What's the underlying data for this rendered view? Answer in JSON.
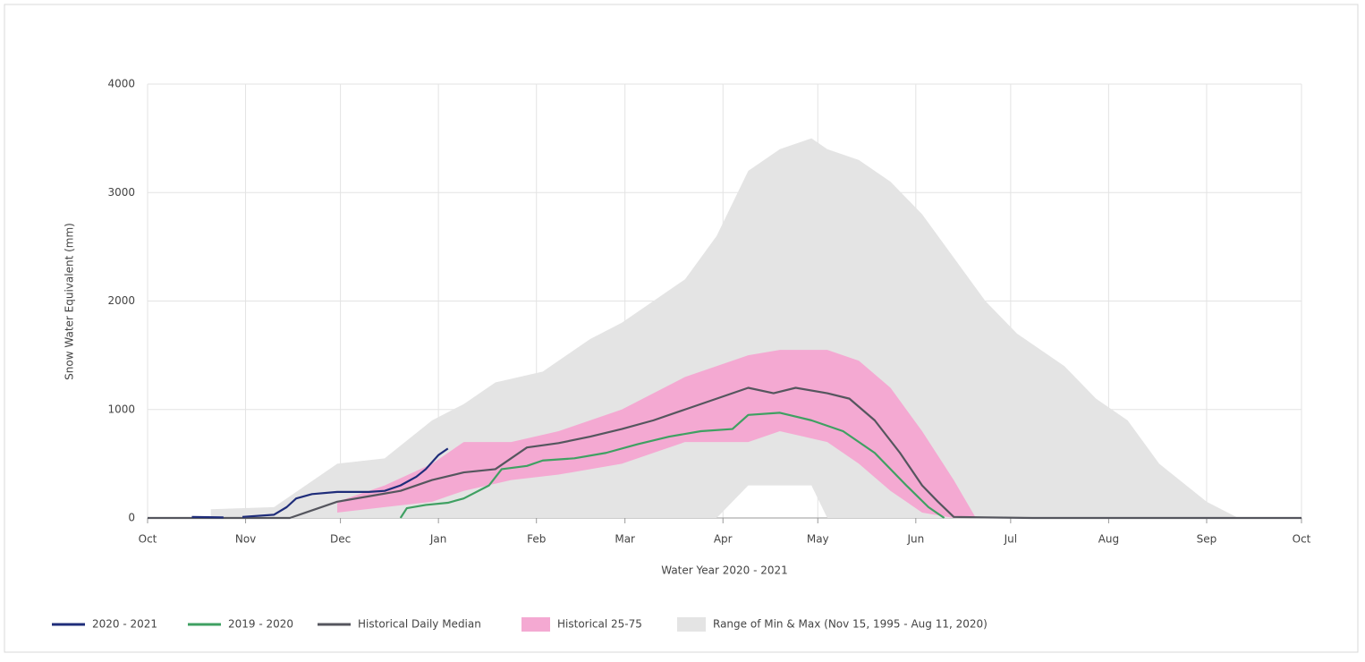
{
  "chart_data": {
    "type": "line",
    "x_label": "Water Year 2020 - 2021",
    "y_label": "Snow Water Equivalent (mm)",
    "xlim": [
      0,
      365
    ],
    "ylim": [
      0,
      4000
    ],
    "grid": true,
    "legend": "bottom",
    "xticks": [
      {
        "value": 0,
        "label": "Oct"
      },
      {
        "value": 31,
        "label": "Nov"
      },
      {
        "value": 61,
        "label": "Dec"
      },
      {
        "value": 92,
        "label": "Jan"
      },
      {
        "value": 123,
        "label": "Feb"
      },
      {
        "value": 151,
        "label": "Mar"
      },
      {
        "value": 182,
        "label": "Apr"
      },
      {
        "value": 212,
        "label": "May"
      },
      {
        "value": 243,
        "label": "Jun"
      },
      {
        "value": 273,
        "label": "Jul"
      },
      {
        "value": 304,
        "label": "Aug"
      },
      {
        "value": 335,
        "label": "Sep"
      },
      {
        "value": 365,
        "label": "Oct"
      }
    ],
    "yticks": [
      0,
      1000,
      2000,
      3000,
      4000
    ],
    "series": [
      {
        "name": "2020 - 2021",
        "type": "line",
        "color": "#1f2d7a",
        "x": [
          14,
          24,
          27,
          30,
          40,
          44,
          47,
          52,
          60,
          70,
          75,
          80,
          85,
          88,
          92,
          95
        ],
        "values": [
          10,
          5,
          null,
          10,
          30,
          100,
          180,
          220,
          240,
          240,
          250,
          300,
          380,
          450,
          580,
          640
        ]
      },
      {
        "name": "2019 - 2020",
        "type": "line",
        "color": "#3fa062",
        "x": [
          80,
          82,
          88,
          95,
          100,
          108,
          112,
          120,
          125,
          135,
          145,
          155,
          165,
          175,
          185,
          190,
          200,
          210,
          220,
          230,
          240,
          247,
          252
        ],
        "values": [
          0,
          90,
          120,
          140,
          180,
          300,
          450,
          480,
          530,
          550,
          600,
          680,
          750,
          800,
          820,
          950,
          970,
          900,
          800,
          600,
          300,
          100,
          0
        ]
      },
      {
        "name": "Historical Daily Median",
        "type": "line",
        "color": "#55565e",
        "x": [
          0,
          45,
          50,
          60,
          70,
          80,
          90,
          100,
          110,
          115,
          120,
          130,
          140,
          150,
          160,
          170,
          180,
          190,
          198,
          205,
          215,
          222,
          230,
          238,
          245,
          250,
          255,
          265,
          280,
          365
        ],
        "values": [
          0,
          0,
          50,
          150,
          200,
          250,
          350,
          420,
          450,
          550,
          650,
          690,
          750,
          820,
          900,
          1000,
          1100,
          1200,
          1150,
          1200,
          1150,
          1100,
          900,
          600,
          300,
          150,
          10,
          5,
          0,
          0
        ]
      },
      {
        "name": "Historical 25-75",
        "type": "band",
        "color": "#f4a9d2",
        "x": [
          60,
          75,
          90,
          100,
          115,
          130,
          150,
          170,
          190,
          200,
          215,
          225,
          235,
          245,
          255,
          262
        ],
        "upper": [
          150,
          300,
          500,
          700,
          700,
          800,
          1000,
          1300,
          1500,
          1550,
          1550,
          1450,
          1200,
          800,
          350,
          0
        ],
        "lower": [
          50,
          100,
          150,
          250,
          350,
          400,
          500,
          700,
          700,
          800,
          700,
          500,
          250,
          50,
          0,
          0
        ]
      },
      {
        "name": "Range of Min & Max (Nov 15, 1995 - Aug 11, 2020)",
        "type": "band",
        "color": "#e4e4e4",
        "x": [
          20,
          40,
          50,
          60,
          75,
          90,
          100,
          110,
          125,
          140,
          150,
          160,
          170,
          180,
          190,
          200,
          210,
          215,
          225,
          235,
          245,
          255,
          265,
          275,
          290,
          300,
          310,
          320,
          335,
          345
        ],
        "upper": [
          80,
          100,
          300,
          500,
          550,
          900,
          1050,
          1250,
          1350,
          1650,
          1800,
          2000,
          2200,
          2600,
          3200,
          3400,
          3500,
          3400,
          3300,
          3100,
          2800,
          2400,
          2000,
          1700,
          1400,
          1100,
          900,
          500,
          150,
          0
        ],
        "lower": [
          0,
          0,
          0,
          0,
          0,
          0,
          0,
          0,
          0,
          0,
          0,
          0,
          0,
          0,
          300,
          300,
          300,
          0,
          0,
          0,
          0,
          0,
          0,
          0,
          0,
          0,
          0,
          0,
          0,
          0
        ]
      }
    ]
  }
}
